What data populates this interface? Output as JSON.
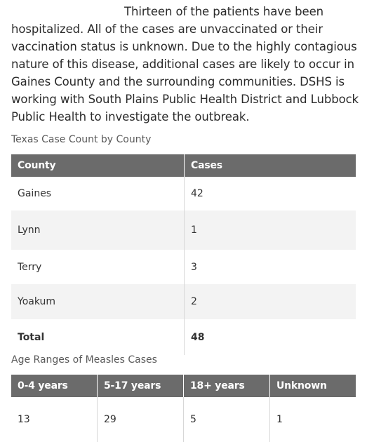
{
  "article": {
    "paragraph": "Thirteen of the patients have been hospitalized. All of the cases are unvaccinated or their vaccination status is unknown. Due to the highly contagious nature of this disease, additional cases are likely to occur in Gaines County and the surrounding communities. DSHS is working with South Plains Public Health District and Lubbock Public Health to investigate the outbreak."
  },
  "county_table": {
    "caption": "Texas Case Count by County",
    "headers": [
      "County",
      "Cases"
    ],
    "rows": [
      [
        "Gaines",
        "42"
      ],
      [
        "Lynn",
        "1"
      ],
      [
        "Terry",
        "3"
      ],
      [
        "Yoakum",
        "2"
      ],
      [
        "Total",
        "48"
      ]
    ]
  },
  "age_table": {
    "caption": "Age Ranges of Measles Cases",
    "headers": [
      "0-4 years",
      "5-17 years",
      "18+ years",
      "Unknown"
    ],
    "rows": [
      [
        "13",
        "29",
        "5",
        "1"
      ]
    ]
  },
  "colors": {
    "header_bg": "#6b6b6b",
    "stripe_bg": "#f3f3f3",
    "text": "#2b2b2b"
  }
}
